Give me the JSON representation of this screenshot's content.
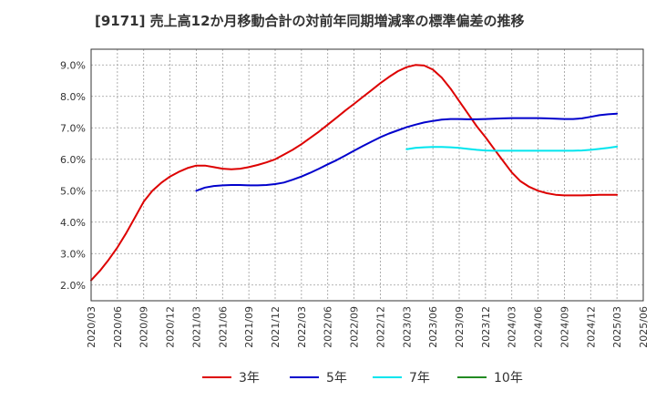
{
  "chart_data": {
    "type": "line",
    "title": "[9171]  売上高12か月移動合計の対前年同期増減率の標準偏差の推移",
    "xlabel": "",
    "ylabel": "",
    "ylim": [
      1.5,
      9.5
    ],
    "y_ticks": [
      "2.0%",
      "3.0%",
      "4.0%",
      "5.0%",
      "6.0%",
      "7.0%",
      "8.0%",
      "9.0%"
    ],
    "y_tick_values": [
      2,
      3,
      4,
      5,
      6,
      7,
      8,
      9
    ],
    "x_ticks": [
      "2020/03",
      "2020/06",
      "2020/09",
      "2020/12",
      "2021/03",
      "2021/06",
      "2021/09",
      "2021/12",
      "2022/03",
      "2022/06",
      "2022/09",
      "2022/12",
      "2023/03",
      "2023/06",
      "2023/09",
      "2023/12",
      "2024/03",
      "2024/06",
      "2024/09",
      "2024/12",
      "2025/03",
      "2025/06"
    ],
    "grid": true,
    "legend_position": "bottom",
    "series": [
      {
        "name": "3年",
        "color": "#dd0000",
        "x": [
          "2020/03",
          "2020/04",
          "2020/05",
          "2020/06",
          "2020/07",
          "2020/08",
          "2020/09",
          "2020/10",
          "2020/11",
          "2020/12",
          "2021/01",
          "2021/02",
          "2021/03",
          "2021/04",
          "2021/05",
          "2021/06",
          "2021/07",
          "2021/08",
          "2021/09",
          "2021/10",
          "2021/11",
          "2021/12",
          "2022/01",
          "2022/02",
          "2022/03",
          "2022/04",
          "2022/05",
          "2022/06",
          "2022/07",
          "2022/08",
          "2022/09",
          "2022/10",
          "2022/11",
          "2022/12",
          "2023/01",
          "2023/02",
          "2023/03",
          "2023/04",
          "2023/05",
          "2023/06",
          "2023/07",
          "2023/08",
          "2023/09",
          "2023/10",
          "2023/11",
          "2023/12",
          "2024/01",
          "2024/02",
          "2024/03",
          "2024/04",
          "2024/05",
          "2024/06",
          "2024/07",
          "2024/08",
          "2024/09",
          "2024/10",
          "2024/11",
          "2024/12",
          "2025/01",
          "2025/02",
          "2025/03"
        ],
        "values": [
          2.15,
          2.45,
          2.8,
          3.2,
          3.65,
          4.15,
          4.65,
          5.0,
          5.25,
          5.45,
          5.6,
          5.72,
          5.8,
          5.8,
          5.75,
          5.7,
          5.68,
          5.7,
          5.75,
          5.82,
          5.9,
          6.0,
          6.15,
          6.3,
          6.48,
          6.68,
          6.88,
          7.1,
          7.32,
          7.55,
          7.76,
          7.98,
          8.2,
          8.42,
          8.62,
          8.8,
          8.93,
          9.0,
          8.98,
          8.85,
          8.6,
          8.25,
          7.85,
          7.45,
          7.05,
          6.7,
          6.32,
          5.95,
          5.58,
          5.3,
          5.12,
          5.0,
          4.92,
          4.87,
          4.85,
          4.85,
          4.85,
          4.86,
          4.87,
          4.87,
          4.87
        ]
      },
      {
        "name": "5年",
        "color": "#0000cc",
        "x": [
          "2021/03",
          "2021/04",
          "2021/05",
          "2021/06",
          "2021/07",
          "2021/08",
          "2021/09",
          "2021/10",
          "2021/11",
          "2021/12",
          "2022/01",
          "2022/02",
          "2022/03",
          "2022/04",
          "2022/05",
          "2022/06",
          "2022/07",
          "2022/08",
          "2022/09",
          "2022/10",
          "2022/11",
          "2022/12",
          "2023/01",
          "2023/02",
          "2023/03",
          "2023/04",
          "2023/05",
          "2023/06",
          "2023/07",
          "2023/08",
          "2023/09",
          "2023/10",
          "2023/11",
          "2023/12",
          "2024/01",
          "2024/02",
          "2024/03",
          "2024/04",
          "2024/05",
          "2024/06",
          "2024/07",
          "2024/08",
          "2024/09",
          "2024/10",
          "2024/11",
          "2024/12",
          "2025/01",
          "2025/02",
          "2025/03"
        ],
        "values": [
          5.0,
          5.1,
          5.15,
          5.17,
          5.18,
          5.18,
          5.17,
          5.17,
          5.18,
          5.21,
          5.26,
          5.35,
          5.45,
          5.57,
          5.7,
          5.84,
          5.97,
          6.12,
          6.27,
          6.42,
          6.56,
          6.7,
          6.82,
          6.92,
          7.02,
          7.1,
          7.17,
          7.22,
          7.26,
          7.28,
          7.28,
          7.27,
          7.27,
          7.28,
          7.29,
          7.3,
          7.31,
          7.31,
          7.31,
          7.31,
          7.3,
          7.29,
          7.28,
          7.28,
          7.3,
          7.35,
          7.4,
          7.43,
          7.45
        ]
      },
      {
        "name": "7年",
        "color": "#00e5ee",
        "x": [
          "2023/03",
          "2023/04",
          "2023/05",
          "2023/06",
          "2023/07",
          "2023/08",
          "2023/09",
          "2023/10",
          "2023/11",
          "2023/12",
          "2024/01",
          "2024/02",
          "2024/03",
          "2024/04",
          "2024/05",
          "2024/06",
          "2024/07",
          "2024/08",
          "2024/09",
          "2024/10",
          "2024/11",
          "2024/12",
          "2025/01",
          "2025/02",
          "2025/03"
        ],
        "values": [
          6.32,
          6.36,
          6.38,
          6.39,
          6.39,
          6.38,
          6.36,
          6.33,
          6.3,
          6.28,
          6.27,
          6.27,
          6.27,
          6.27,
          6.27,
          6.27,
          6.27,
          6.27,
          6.27,
          6.27,
          6.28,
          6.3,
          6.33,
          6.36,
          6.4
        ]
      },
      {
        "name": "10年",
        "color": "#228b22",
        "x": [],
        "values": []
      }
    ]
  }
}
